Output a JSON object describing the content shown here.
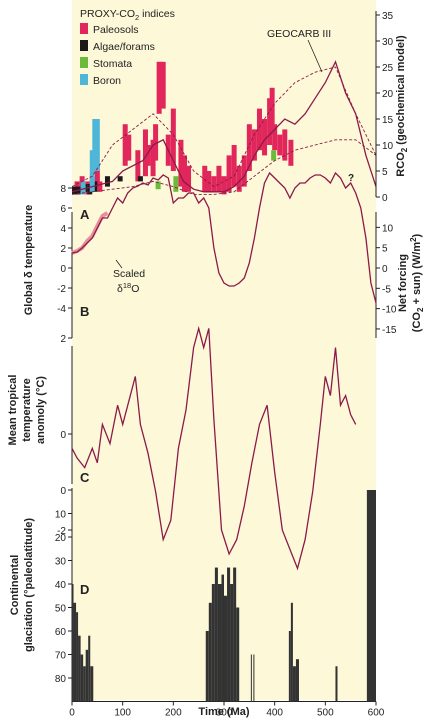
{
  "colors": {
    "background": "#fdf8d8",
    "curve": "#8b1a4a",
    "curve_light": "#e8909a",
    "paleosols": "#e0265a",
    "algae": "#1a1a1a",
    "stomata": "#6cba3c",
    "boron": "#4fb6d8",
    "axis": "#222222",
    "bars": "#333333"
  },
  "labels": {
    "proxy_title_main": "PROXY-CO",
    "proxy_title_sub": "2",
    "proxy_title_tail": " indices",
    "legend_paleosols": "Paleosols",
    "legend_algae": "Algae/forams",
    "legend_stomata": "Stomata",
    "legend_boron": "Boron",
    "geocarb_label": "GEOCARB III",
    "question_mark": "?",
    "panel_a": "A",
    "panel_b": "B",
    "panel_c": "C",
    "panel_d": "D",
    "scaled_label": "Scaled",
    "scaled_delta": "δ",
    "scaled_18": "18",
    "scaled_o": "O",
    "ylabel_a_main": "RCO",
    "ylabel_a_sub": "2",
    "ylabel_a_tail": " (geochemical model)",
    "ylabel_b_left": "Global δ temperature",
    "ylabel_b_right_1": "Net forcing",
    "ylabel_b_right_2": "(CO",
    "ylabel_b_right_2_sub": "2",
    "ylabel_b_right_2_tail": " + sun) (W/m",
    "ylabel_b_right_2_sup": "2",
    "ylabel_b_right_2_end": ")",
    "ylabel_c_1": "Mean tropical",
    "ylabel_c_2": "temperature",
    "ylabel_c_3": "anomoly (°C)",
    "ylabel_d_1": "Continental",
    "ylabel_d_2": "glaciation (°paleolatitude)",
    "xlabel": "Time (Ma)"
  },
  "chart_data": [
    {
      "panel": "A",
      "type": "line",
      "x_axis": {
        "range": [
          0,
          600
        ],
        "ticks": [
          0,
          100,
          200,
          300,
          400,
          500,
          600
        ]
      },
      "y_axis_right": {
        "label": "RCO2 (geochemical model)",
        "range": [
          0,
          35
        ],
        "ticks": [
          0,
          5,
          10,
          15,
          20,
          25,
          30,
          35
        ]
      },
      "series": [
        {
          "name": "GEOCARB III",
          "style": "solid",
          "x": [
            0,
            20,
            40,
            60,
            80,
            100,
            120,
            140,
            160,
            180,
            200,
            220,
            240,
            260,
            280,
            300,
            320,
            340,
            360,
            380,
            400,
            420,
            440,
            460,
            480,
            500,
            520,
            540,
            560,
            580,
            600
          ],
          "y": [
            1,
            1.5,
            2,
            2.5,
            3,
            5,
            6,
            7,
            10,
            11,
            7,
            3,
            1.5,
            1,
            1,
            1,
            2,
            4,
            8,
            11,
            13,
            15,
            14,
            16,
            19,
            22,
            26,
            20,
            16,
            8,
            2
          ]
        },
        {
          "style": "dashed",
          "x": [
            0,
            40,
            80,
            120,
            160,
            200,
            240,
            280,
            320,
            360,
            400,
            440,
            480,
            520,
            560,
            600
          ],
          "y": [
            2,
            4,
            10,
            13,
            16,
            12,
            5,
            2,
            4,
            12,
            18,
            22,
            24,
            25,
            16,
            8
          ]
        },
        {
          "style": "dashed",
          "x": [
            0,
            40,
            80,
            120,
            160,
            200,
            240,
            280,
            320,
            360,
            400,
            440,
            480,
            520,
            560,
            600
          ],
          "y": [
            0.5,
            1,
            1.5,
            2,
            3,
            2,
            0.5,
            0.5,
            1,
            4,
            7,
            9,
            10,
            11,
            11,
            8
          ]
        }
      ],
      "proxy_bars": [
        {
          "type": "paleosols",
          "x": 105,
          "low": 6,
          "high": 14
        },
        {
          "type": "paleosols",
          "x": 112,
          "low": 7,
          "high": 12
        },
        {
          "type": "paleosols",
          "x": 130,
          "low": 3,
          "high": 9
        },
        {
          "type": "paleosols",
          "x": 145,
          "low": 4,
          "high": 13
        },
        {
          "type": "paleosols",
          "x": 150,
          "low": 6,
          "high": 10
        },
        {
          "type": "paleosols",
          "x": 160,
          "low": 4,
          "high": 11
        },
        {
          "type": "paleosols",
          "x": 165,
          "low": 7,
          "high": 14
        },
        {
          "type": "paleosols",
          "x": 172,
          "low": 16,
          "high": 26
        },
        {
          "type": "paleosols",
          "x": 180,
          "low": 17,
          "high": 26
        },
        {
          "type": "paleosols",
          "x": 190,
          "low": 6,
          "high": 12
        },
        {
          "type": "paleosols",
          "x": 200,
          "low": 5,
          "high": 17
        },
        {
          "type": "paleosols",
          "x": 215,
          "low": 2,
          "high": 11
        },
        {
          "type": "paleosols",
          "x": 222,
          "low": 1,
          "high": 8
        },
        {
          "type": "paleosols",
          "x": 230,
          "low": 1,
          "high": 6
        },
        {
          "type": "paleosols",
          "x": 262,
          "low": 1,
          "high": 6
        },
        {
          "type": "paleosols",
          "x": 270,
          "low": 1,
          "high": 5
        },
        {
          "type": "paleosols",
          "x": 280,
          "low": 1,
          "high": 4
        },
        {
          "type": "paleosols",
          "x": 290,
          "low": 1,
          "high": 6
        },
        {
          "type": "paleosols",
          "x": 300,
          "low": 0.5,
          "high": 4
        },
        {
          "type": "paleosols",
          "x": 310,
          "low": 1,
          "high": 8
        },
        {
          "type": "paleosols",
          "x": 320,
          "low": 2,
          "high": 10
        },
        {
          "type": "paleosols",
          "x": 330,
          "low": 1,
          "high": 6
        },
        {
          "type": "paleosols",
          "x": 340,
          "low": 2,
          "high": 8
        },
        {
          "type": "paleosols",
          "x": 350,
          "low": 5,
          "high": 14
        },
        {
          "type": "paleosols",
          "x": 360,
          "low": 7,
          "high": 13
        },
        {
          "type": "paleosols",
          "x": 370,
          "low": 9,
          "high": 17
        },
        {
          "type": "paleosols",
          "x": 380,
          "low": 8,
          "high": 15
        },
        {
          "type": "paleosols",
          "x": 390,
          "low": 10,
          "high": 19
        },
        {
          "type": "paleosols",
          "x": 395,
          "low": 12,
          "high": 21
        },
        {
          "type": "paleosols",
          "x": 400,
          "low": 9,
          "high": 14
        },
        {
          "type": "paleosols",
          "x": 410,
          "low": 8,
          "high": 12
        },
        {
          "type": "paleosols",
          "x": 420,
          "low": 7,
          "high": 13
        },
        {
          "type": "paleosols",
          "x": 432,
          "low": 6,
          "high": 11
        },
        {
          "type": "paleosols",
          "x": 10,
          "low": 0.5,
          "high": 3
        },
        {
          "type": "paleosols",
          "x": 20,
          "low": 1,
          "high": 4
        },
        {
          "type": "paleosols",
          "x": 30,
          "low": 0.5,
          "high": 3
        },
        {
          "type": "paleosols",
          "x": 40,
          "low": 1,
          "high": 4
        },
        {
          "type": "paleosols",
          "x": 50,
          "low": 2,
          "high": 6
        },
        {
          "type": "paleosols",
          "x": 55,
          "low": 1,
          "high": 3
        },
        {
          "type": "algae",
          "x": 5,
          "low": 0.5,
          "high": 2
        },
        {
          "type": "algae",
          "x": 12,
          "low": 0.5,
          "high": 2
        },
        {
          "type": "algae",
          "x": 25,
          "low": 1,
          "high": 2.5
        },
        {
          "type": "algae",
          "x": 35,
          "low": 0.5,
          "high": 2.5
        },
        {
          "type": "algae",
          "x": 45,
          "low": 1,
          "high": 3
        },
        {
          "type": "algae",
          "x": 70,
          "low": 2,
          "high": 4
        },
        {
          "type": "algae",
          "x": 95,
          "low": 3,
          "high": 4
        },
        {
          "type": "algae",
          "x": 135,
          "low": 3,
          "high": 4
        },
        {
          "type": "stomata",
          "x": 170,
          "low": 1.5,
          "high": 3
        },
        {
          "type": "stomata",
          "x": 205,
          "low": 1,
          "high": 4
        },
        {
          "type": "stomata",
          "x": 398,
          "low": 7,
          "high": 9
        },
        {
          "type": "boron",
          "x": 22,
          "low": 0.5,
          "high": 3
        },
        {
          "type": "boron",
          "x": 40,
          "low": 1,
          "high": 9
        },
        {
          "type": "boron",
          "x": 45,
          "low": 5,
          "high": 15
        },
        {
          "type": "boron",
          "x": 50,
          "low": 5,
          "high": 15
        }
      ]
    },
    {
      "panel": "B",
      "type": "line",
      "y_axis_left": {
        "label": "Global δ temperature",
        "range": [
          -4,
          9
        ],
        "ticks": [
          8,
          6,
          4,
          2,
          0,
          -2,
          -4
        ]
      },
      "y_axis_right": {
        "label": "Net forcing (CO2 + sun) (W/m2)",
        "range": [
          -15,
          15
        ],
        "ticks": [
          10,
          5,
          0,
          -5,
          -10,
          -15
        ]
      },
      "series": [
        {
          "name": "Global δ temperature",
          "x": [
            0,
            10,
            20,
            30,
            40,
            50,
            60,
            70,
            80,
            90,
            100,
            110,
            120,
            130,
            140,
            150,
            160,
            170,
            180,
            190,
            200,
            210,
            220,
            230,
            240,
            250,
            260,
            270,
            280,
            290,
            300,
            310,
            320,
            330,
            340,
            350,
            360,
            370,
            380,
            390,
            400,
            410,
            420,
            430,
            440,
            450,
            460,
            470,
            480,
            490,
            500,
            510,
            520,
            530,
            540,
            550,
            560,
            570,
            580,
            590,
            600
          ],
          "y": [
            1.5,
            1.6,
            2,
            2.5,
            3,
            4,
            5,
            5,
            6,
            7,
            6.5,
            7.5,
            8,
            8.2,
            8.5,
            8.3,
            9,
            8.8,
            9.3,
            9,
            6.5,
            7,
            7,
            7.5,
            7.5,
            6.5,
            7,
            6,
            2,
            -0.5,
            -1.5,
            -1.8,
            -1.8,
            -1.5,
            -1,
            0.5,
            3,
            6,
            8.5,
            9.5,
            9,
            8.5,
            8,
            7,
            8,
            8.5,
            8.5,
            9,
            9.3,
            9.3,
            9,
            8.5,
            9.5,
            9,
            8,
            8.5,
            7.5,
            6,
            3,
            -1.5,
            -3.5
          ]
        },
        {
          "name": "Scaled δ18O",
          "x": [
            0,
            10,
            20,
            30,
            40,
            50,
            60,
            70
          ],
          "y": [
            1.5,
            1.7,
            2,
            2.7,
            3.2,
            4.2,
            5.2,
            5.5
          ]
        }
      ]
    },
    {
      "panel": "C",
      "type": "line",
      "y_axis_left": {
        "label": "Mean tropical temperature anomoly (°C)",
        "range": [
          -3.5,
          3
        ],
        "ticks": [
          2,
          0,
          -2
        ]
      },
      "series": [
        {
          "name": "Mean tropical temperature anomoly",
          "x": [
            0,
            10,
            25,
            40,
            50,
            60,
            75,
            90,
            100,
            115,
            125,
            135,
            150,
            165,
            180,
            195,
            210,
            225,
            240,
            250,
            260,
            270,
            280,
            295,
            310,
            325,
            340,
            355,
            370,
            385,
            400,
            415,
            430,
            445,
            460,
            475,
            490,
            500,
            510,
            520,
            530,
            540,
            550,
            560
          ],
          "y": [
            -0.3,
            -0.5,
            -0.7,
            -0.3,
            -0.6,
            0.2,
            -0.2,
            0.6,
            0.2,
            0.8,
            1.2,
            0.2,
            -0.4,
            -1.2,
            -2.2,
            -1.8,
            -0.3,
            0.5,
            1.8,
            2.2,
            1.8,
            2.2,
            0.3,
            -2.0,
            -2.5,
            -2.2,
            -1.5,
            -0.6,
            0.2,
            0.6,
            -0.8,
            -2.0,
            -2.4,
            -2.8,
            -2.2,
            -1.2,
            0.2,
            1.2,
            0.8,
            1.8,
            0.6,
            0.8,
            0.4,
            0.2
          ]
        }
      ]
    },
    {
      "panel": "D",
      "type": "bar",
      "y_axis_left": {
        "label": "Continental glaciation (°paleolatitude)",
        "range": [
          0,
          90
        ],
        "ticks": [
          0,
          10,
          20,
          30,
          40,
          50,
          60,
          70,
          80
        ],
        "inverted": true
      },
      "bars": [
        {
          "x0": 0,
          "x1": 3,
          "top": 40
        },
        {
          "x0": 3,
          "x1": 8,
          "top": 48
        },
        {
          "x0": 8,
          "x1": 12,
          "top": 52
        },
        {
          "x0": 12,
          "x1": 17,
          "top": 62
        },
        {
          "x0": 17,
          "x1": 22,
          "top": 70
        },
        {
          "x0": 22,
          "x1": 27,
          "top": 75
        },
        {
          "x0": 27,
          "x1": 32,
          "top": 68
        },
        {
          "x0": 32,
          "x1": 36,
          "top": 62
        },
        {
          "x0": 36,
          "x1": 42,
          "top": 75
        },
        {
          "x0": 264,
          "x1": 270,
          "top": 60
        },
        {
          "x0": 270,
          "x1": 276,
          "top": 48
        },
        {
          "x0": 276,
          "x1": 282,
          "top": 40
        },
        {
          "x0": 282,
          "x1": 288,
          "top": 33
        },
        {
          "x0": 288,
          "x1": 295,
          "top": 40
        },
        {
          "x0": 295,
          "x1": 300,
          "top": 36
        },
        {
          "x0": 300,
          "x1": 306,
          "top": 45
        },
        {
          "x0": 306,
          "x1": 312,
          "top": 33
        },
        {
          "x0": 312,
          "x1": 318,
          "top": 40
        },
        {
          "x0": 318,
          "x1": 324,
          "top": 33
        },
        {
          "x0": 324,
          "x1": 330,
          "top": 50
        },
        {
          "x0": 353,
          "x1": 355,
          "top": 70
        },
        {
          "x0": 358,
          "x1": 360,
          "top": 70
        },
        {
          "x0": 428,
          "x1": 432,
          "top": 60
        },
        {
          "x0": 432,
          "x1": 436,
          "top": 48
        },
        {
          "x0": 436,
          "x1": 442,
          "top": 75
        },
        {
          "x0": 442,
          "x1": 448,
          "top": 72
        },
        {
          "x0": 520,
          "x1": 524,
          "top": 75
        },
        {
          "x0": 582,
          "x1": 600,
          "top": 0
        }
      ]
    }
  ]
}
